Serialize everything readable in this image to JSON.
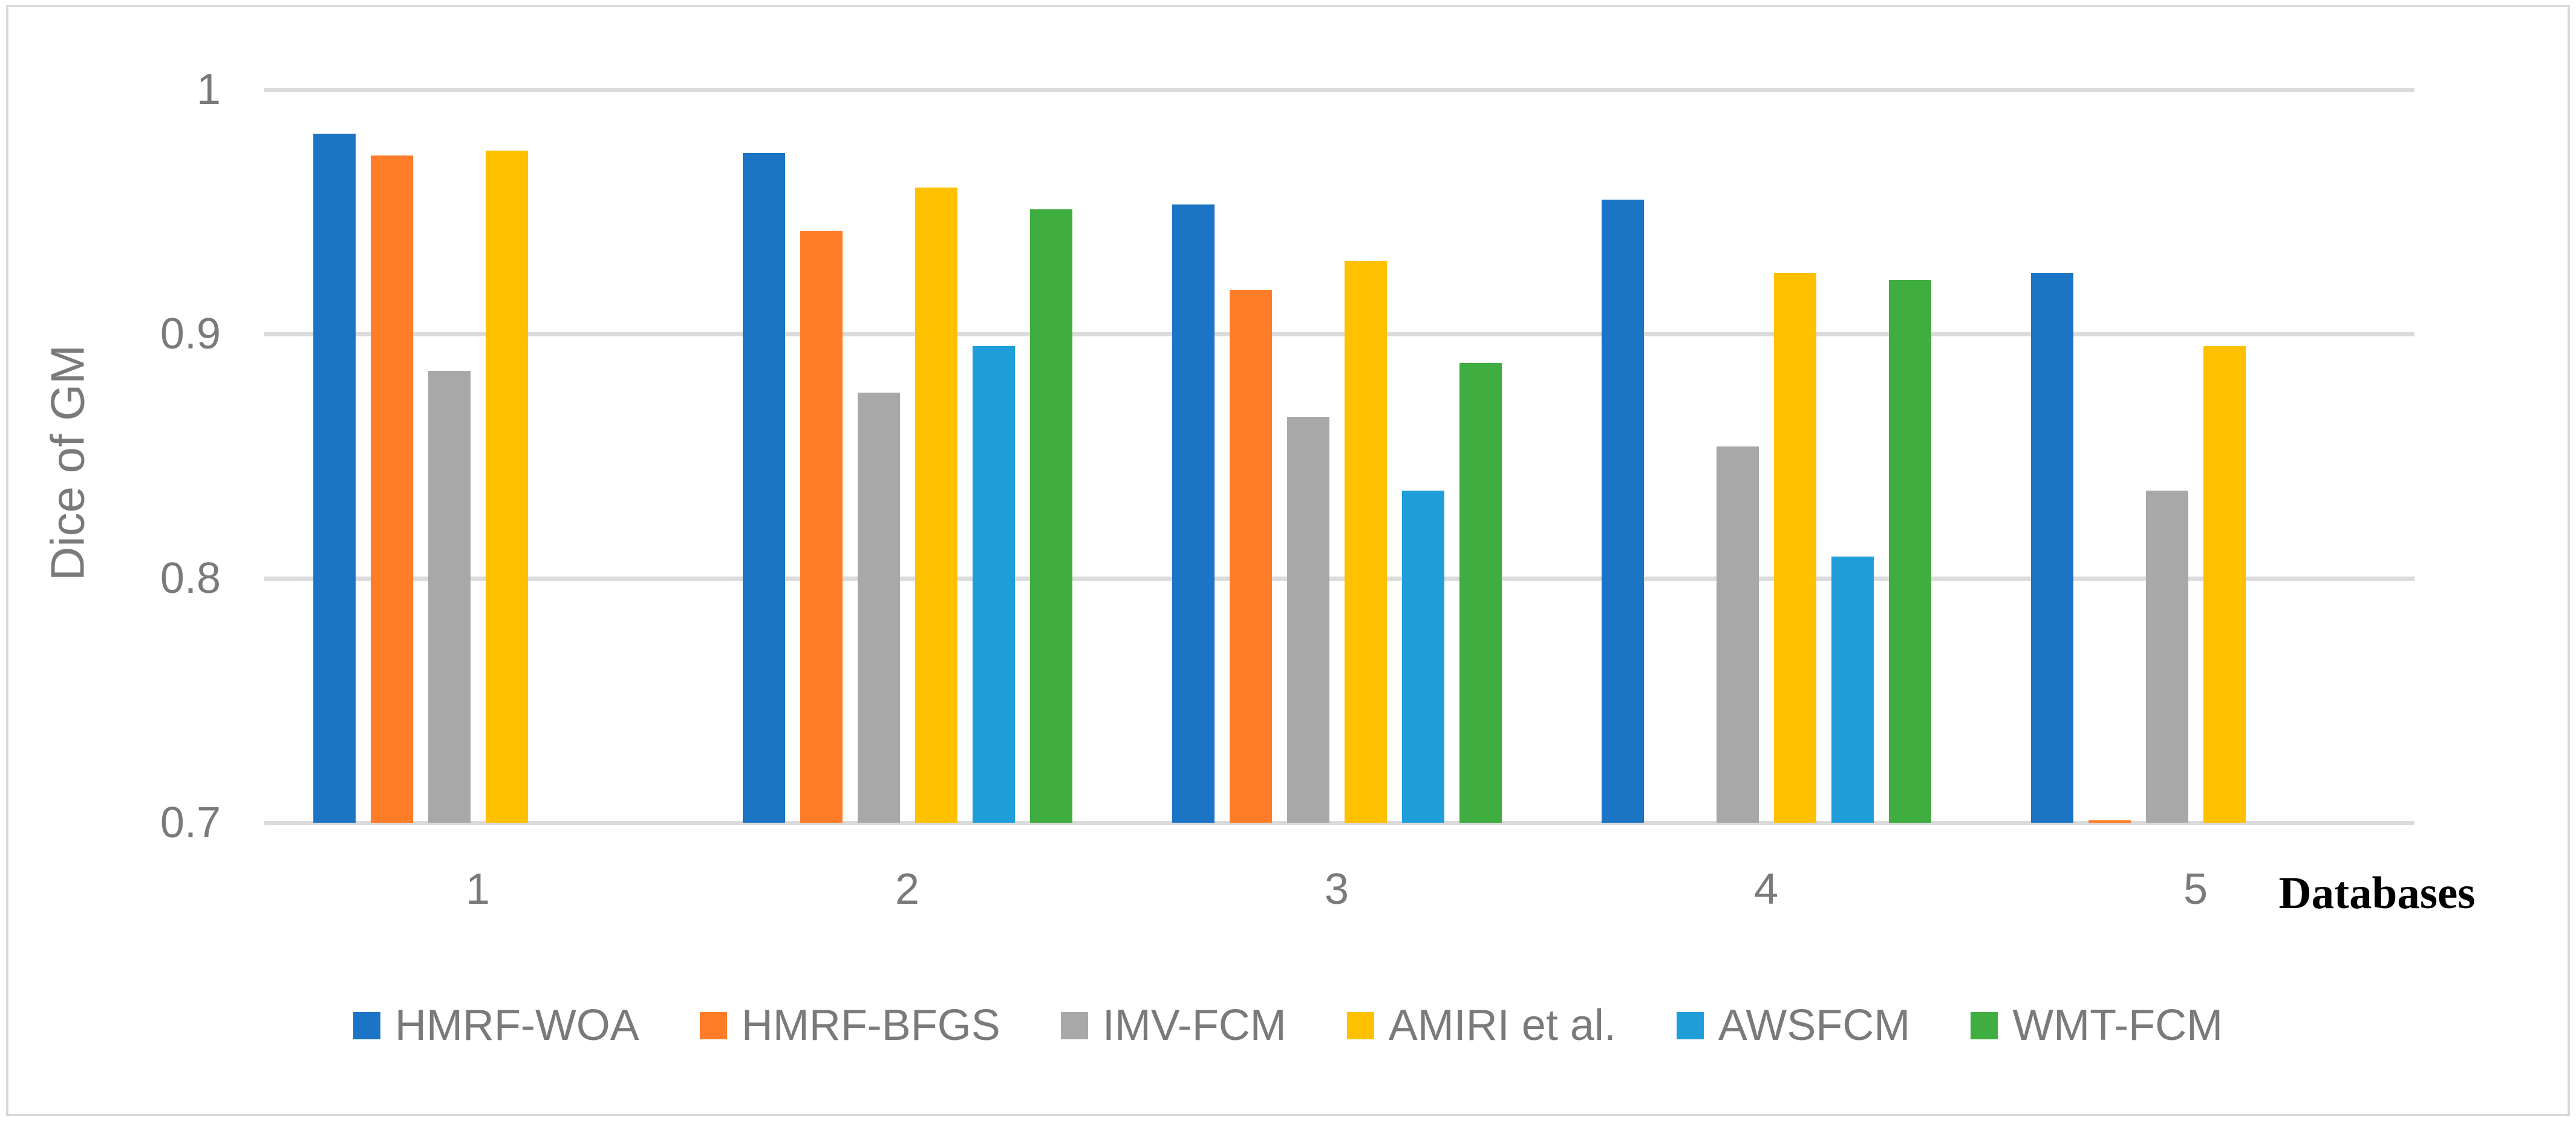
{
  "figure": {
    "border_color": "#D9D9D9"
  },
  "chart_data": {
    "type": "bar",
    "title": "",
    "xlabel": "Databases",
    "ylabel": "Dice of GM",
    "categories": [
      "1",
      "2",
      "3",
      "4",
      "5"
    ],
    "ylim": [
      0.7,
      1.0
    ],
    "y_ticks": [
      {
        "label": "1",
        "value": 1.0
      },
      {
        "label": "0.9",
        "value": 0.9
      },
      {
        "label": "0.8",
        "value": 0.8
      },
      {
        "label": "0.7",
        "value": 0.7
      }
    ],
    "grid": true,
    "legend_position": "bottom",
    "series": [
      {
        "name": "HMRF-WOA",
        "color": "#1B74C4",
        "values": [
          0.982,
          0.974,
          0.953,
          0.955,
          0.925
        ]
      },
      {
        "name": "HMRF-BFGS",
        "color": "#FF7D28",
        "values": [
          0.973,
          0.942,
          0.918,
          null,
          0.701
        ]
      },
      {
        "name": "IMV-FCM",
        "color": "#A8A8A8",
        "values": [
          0.885,
          0.876,
          0.866,
          0.854,
          0.836
        ]
      },
      {
        "name": "AMIRI et al.",
        "color": "#FFC000",
        "values": [
          0.975,
          0.96,
          0.93,
          0.925,
          0.895
        ]
      },
      {
        "name": "AWSFCM",
        "color": "#1F9ED9",
        "values": [
          null,
          0.895,
          0.836,
          0.809,
          null
        ]
      },
      {
        "name": "WMT-FCM",
        "color": "#3FAD3F",
        "values": [
          null,
          0.951,
          0.888,
          0.922,
          null
        ]
      }
    ],
    "style": {
      "text_color": "#7A7A7A",
      "gridline_color": "#DBDBDB",
      "xlabel_color": "#000000"
    }
  }
}
